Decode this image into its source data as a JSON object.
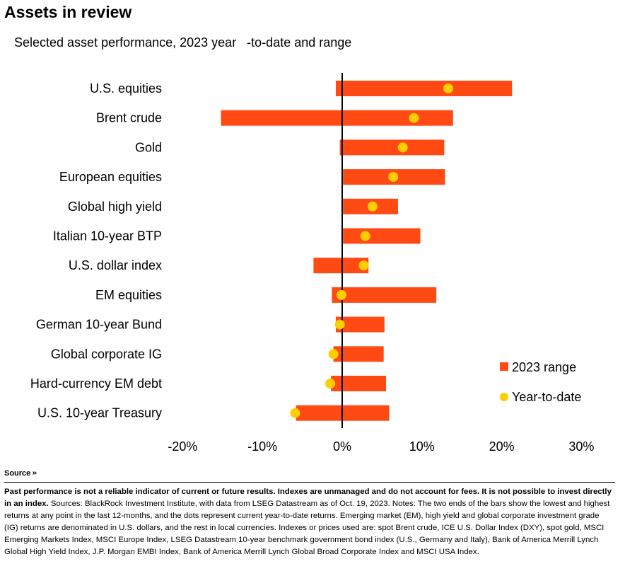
{
  "title": "Assets in review",
  "subtitle": "Selected asset performance, 2023 year   -to-date and range",
  "source_label": "Source",
  "notes_bold": "Past performance is not a reliable indicator of current or future results. Indexes are unmanaged and do not account for fees. It is not possible to invest directly in an index.",
  "notes_text": " Sources: BlackRock Investment Institute, with data from LSEG Datastream as of Oct. 19, 2023. Notes: The two ends of the bars show the lowest and highest returns at any point in the last 12-months, and the dots represent current year-to-date returns. Emerging market (EM), high yield and global corporate investment grade (IG) returns are denominated in U.S. dollars, and the rest in local currencies. Indexes or prices used are: spot Brent crude, ICE U.S. Dollar Index (DXY), spot gold, MSCI Emerging Markets Index, MSCI Europe Index, LSEG Datastream 10-year benchmark government bond index (U.S., Germany and Italy), Bank of America Merrill Lynch Global High Yield Index, J.P. Morgan EMBI Index, Bank of America Merrill Lynch Global Broad Corporate Index and MSCI USA Index.",
  "chart_data": {
    "type": "bar",
    "orientation": "horizontal-range",
    "categories": [
      "U.S. equities",
      "Brent crude",
      "Gold",
      "European equities",
      "Global high yield",
      "Italian 10-year BTP",
      "U.S. dollar index",
      "EM equities",
      "German 10-year Bund",
      "Global corporate IG",
      "Hard-currency EM debt",
      "U.S. 10-year Treasury"
    ],
    "series": [
      {
        "name": "2023 range",
        "type": "range",
        "color": "#ff4a14",
        "low": [
          -0.8,
          -15.2,
          -0.3,
          0.1,
          0.1,
          0.1,
          -3.6,
          -1.3,
          -0.8,
          -1.1,
          -1.4,
          -5.8
        ],
        "high": [
          21.3,
          13.9,
          12.8,
          12.9,
          7.0,
          9.8,
          3.3,
          11.8,
          5.3,
          5.2,
          5.5,
          5.9
        ]
      },
      {
        "name": "Year-to-date",
        "type": "point",
        "color": "#ffce00",
        "values": [
          13.3,
          9.0,
          7.6,
          6.4,
          3.8,
          2.9,
          2.7,
          -0.1,
          -0.3,
          -1.1,
          -1.5,
          -5.9
        ]
      }
    ],
    "xticks": [
      "-20%",
      "-10%",
      "0%",
      "10%",
      "20%",
      "30%"
    ],
    "xtick_values": [
      -20,
      -10,
      0,
      10,
      20,
      30
    ],
    "xlim": [
      -20,
      30
    ],
    "legend_position": "bottom-right",
    "grid": false
  }
}
